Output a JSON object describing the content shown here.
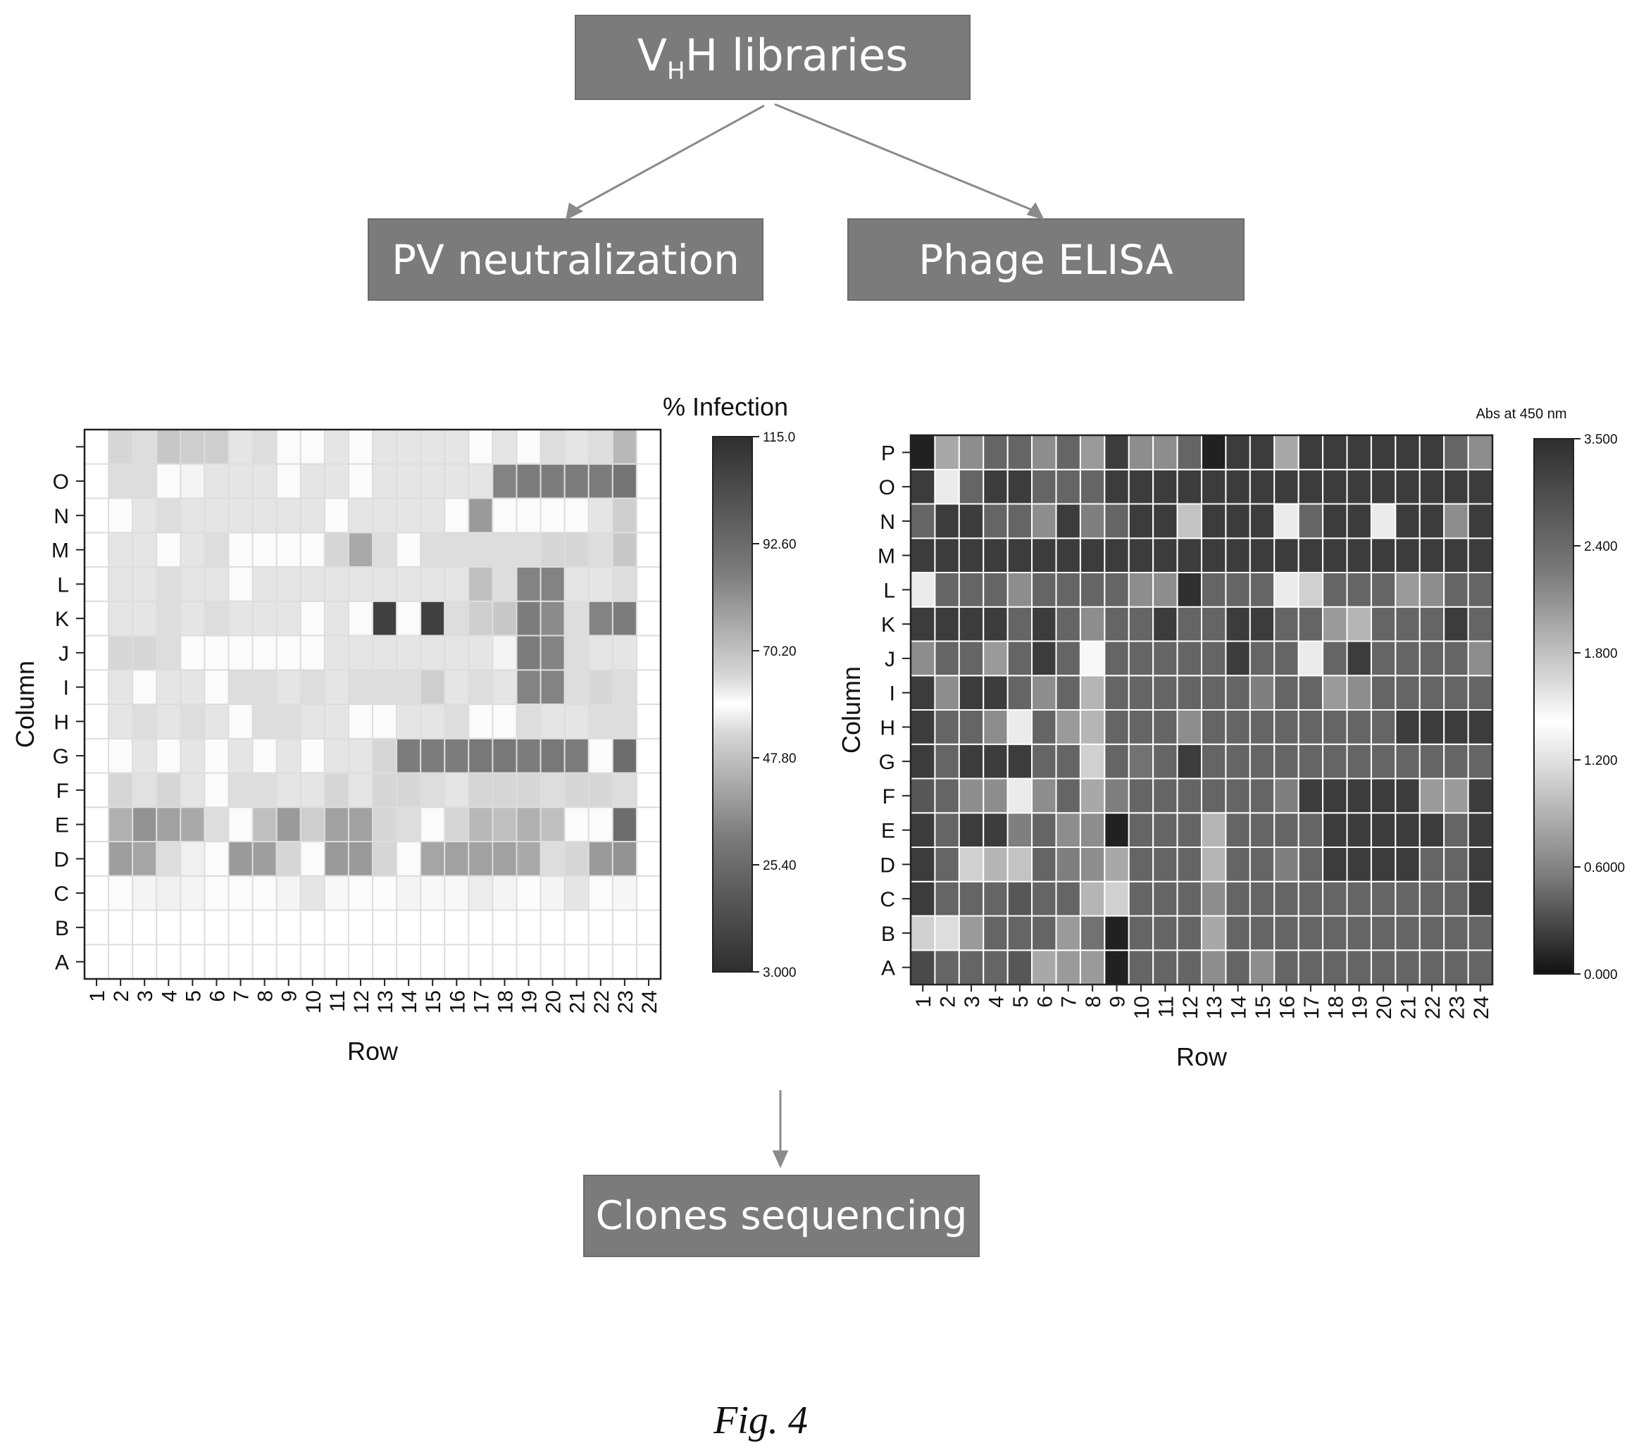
{
  "flow": {
    "libraries_main": "V",
    "libraries_sub": "H",
    "libraries_rest": "H libraries",
    "pv": "PV neutralization",
    "elisa": "Phage ELISA",
    "clones": "Clones sequencing"
  },
  "caption": "Fig. 4",
  "chart_data": [
    {
      "type": "heatmap",
      "title": "",
      "xlabel": "Row",
      "ylabel": "Column",
      "x_ticks": [
        "1",
        "2",
        "3",
        "4",
        "5",
        "6",
        "7",
        "8",
        "9",
        "10",
        "11",
        "12",
        "13",
        "14",
        "15",
        "16",
        "17",
        "18",
        "19",
        "20",
        "21",
        "22",
        "23",
        "24"
      ],
      "y_ticks": [
        "A",
        "B",
        "C",
        "D",
        "E",
        "F",
        "G",
        "H",
        "I",
        "J",
        "K",
        "L",
        "M",
        "N",
        "O",
        ""
      ],
      "colorbar": {
        "label": "% Infection",
        "ticks": [
          "115.0",
          "92.60",
          "70.20",
          "47.80",
          "25.40",
          "3.000"
        ],
        "min": 3.0,
        "max": 115.0
      },
      "values": [
        [
          null,
          null,
          null,
          null,
          null,
          null,
          null,
          null,
          null,
          null,
          null,
          null,
          null,
          null,
          null,
          null,
          null,
          null,
          null,
          null,
          null,
          null,
          null,
          null
        ],
        [
          null,
          null,
          null,
          null,
          null,
          null,
          null,
          null,
          null,
          null,
          null,
          null,
          null,
          null,
          null,
          null,
          null,
          null,
          null,
          null,
          null,
          null,
          null,
          null
        ],
        [
          null,
          58,
          62,
          55,
          62,
          60,
          58,
          60,
          56,
          52,
          57,
          60,
          58,
          56,
          57,
          57,
          54,
          56,
          58,
          56,
          52,
          60,
          61,
          null
        ],
        [
          null,
          85,
          83,
          68,
          63,
          58,
          86,
          85,
          70,
          60,
          86,
          86,
          70,
          60,
          83,
          84,
          84,
          84,
          82,
          68,
          70,
          86,
          88,
          null
        ],
        [
          null,
          80,
          88,
          84,
          82,
          68,
          60,
          76,
          86,
          72,
          84,
          84,
          70,
          68,
          60,
          70,
          78,
          76,
          80,
          76,
          60,
          60,
          98,
          null
        ],
        [
          null,
          70,
          67,
          70,
          66,
          60,
          68,
          68,
          66,
          66,
          70,
          66,
          70,
          70,
          68,
          66,
          70,
          70,
          70,
          68,
          70,
          70,
          68,
          null
        ],
        [
          null,
          60,
          66,
          60,
          66,
          60,
          66,
          60,
          66,
          60,
          66,
          66,
          70,
          94,
          94,
          94,
          95,
          95,
          94,
          95,
          94,
          58,
          98,
          null
        ],
        [
          null,
          66,
          68,
          66,
          68,
          66,
          60,
          68,
          68,
          66,
          66,
          58,
          60,
          66,
          66,
          68,
          60,
          60,
          68,
          66,
          66,
          68,
          68,
          null
        ],
        [
          null,
          66,
          58,
          66,
          66,
          60,
          68,
          68,
          66,
          68,
          66,
          68,
          68,
          68,
          72,
          66,
          68,
          66,
          92,
          92,
          68,
          70,
          68,
          null
        ],
        [
          null,
          70,
          70,
          68,
          60,
          60,
          60,
          60,
          60,
          60,
          66,
          66,
          66,
          66,
          66,
          66,
          66,
          62,
          94,
          92,
          68,
          66,
          66,
          null
        ],
        [
          null,
          66,
          66,
          68,
          66,
          68,
          66,
          66,
          66,
          58,
          66,
          58,
          110,
          60,
          110,
          68,
          72,
          74,
          94,
          90,
          68,
          92,
          94,
          null
        ],
        [
          null,
          66,
          66,
          68,
          66,
          66,
          60,
          66,
          66,
          66,
          66,
          66,
          66,
          66,
          66,
          66,
          76,
          68,
          92,
          92,
          66,
          66,
          68,
          null
        ],
        [
          null,
          66,
          66,
          58,
          66,
          68,
          58,
          60,
          60,
          58,
          70,
          82,
          68,
          60,
          68,
          68,
          68,
          68,
          68,
          70,
          70,
          68,
          74,
          null
        ],
        [
          null,
          60,
          66,
          68,
          66,
          66,
          66,
          66,
          66,
          66,
          58,
          66,
          66,
          66,
          66,
          60,
          86,
          58,
          60,
          60,
          60,
          66,
          72,
          null
        ],
        [
          null,
          68,
          68,
          58,
          62,
          66,
          66,
          66,
          60,
          66,
          66,
          60,
          66,
          66,
          66,
          66,
          66,
          92,
          94,
          94,
          94,
          94,
          96,
          null
        ],
        [
          null,
          70,
          68,
          74,
          72,
          72,
          66,
          68,
          60,
          58,
          66,
          58,
          66,
          66,
          66,
          66,
          58,
          66,
          60,
          68,
          66,
          68,
          78,
          null
        ]
      ]
    },
    {
      "type": "heatmap",
      "title": "",
      "xlabel": "Row",
      "ylabel": "Column",
      "x_ticks": [
        "1",
        "2",
        "3",
        "4",
        "5",
        "6",
        "7",
        "8",
        "9",
        "10",
        "11",
        "12",
        "13",
        "14",
        "15",
        "16",
        "17",
        "18",
        "19",
        "20",
        "21",
        "22",
        "23",
        "24"
      ],
      "y_ticks": [
        "A",
        "B",
        "C",
        "D",
        "E",
        "F",
        "G",
        "H",
        "I",
        "J",
        "K",
        "L",
        "M",
        "N",
        "O",
        "P"
      ],
      "colorbar": {
        "label": "Abs at 450 nm",
        "ticks": [
          "3.500",
          "2.400",
          "1.800",
          "1.200",
          "0.6000",
          "0.000"
        ],
        "min": 0.0,
        "max": 3.5
      },
      "values": [
        [
          0.4,
          0.6,
          0.6,
          0.6,
          0.5,
          1.1,
          1.0,
          1.0,
          0.1,
          0.6,
          0.6,
          0.6,
          0.9,
          0.6,
          0.9,
          0.6,
          0.6,
          0.6,
          0.6,
          0.6,
          0.6,
          0.6,
          0.6,
          0.6
        ],
        [
          1.4,
          1.5,
          1.0,
          0.6,
          0.6,
          0.6,
          1.0,
          0.7,
          0.1,
          0.6,
          0.6,
          0.6,
          1.1,
          0.6,
          0.6,
          0.6,
          0.6,
          0.6,
          0.6,
          0.6,
          0.6,
          0.6,
          0.6,
          0.6
        ],
        [
          0.3,
          0.6,
          0.6,
          0.6,
          0.5,
          0.6,
          0.6,
          1.2,
          1.4,
          0.6,
          0.6,
          0.6,
          0.9,
          0.6,
          0.6,
          0.6,
          0.6,
          0.6,
          0.6,
          0.6,
          0.6,
          0.6,
          0.6,
          0.3
        ],
        [
          0.3,
          0.6,
          1.4,
          1.2,
          1.3,
          0.6,
          0.8,
          0.9,
          1.1,
          0.6,
          0.6,
          0.6,
          1.2,
          0.6,
          0.6,
          0.8,
          0.6,
          0.3,
          0.3,
          0.3,
          0.3,
          0.6,
          0.6,
          0.3
        ],
        [
          0.3,
          0.6,
          0.3,
          0.3,
          0.8,
          0.6,
          0.9,
          0.9,
          0.1,
          0.6,
          0.6,
          0.6,
          1.2,
          0.6,
          0.6,
          0.6,
          0.6,
          0.3,
          0.3,
          0.3,
          0.3,
          0.3,
          0.6,
          0.3
        ],
        [
          0.5,
          0.6,
          0.9,
          0.9,
          1.6,
          0.9,
          0.6,
          1.1,
          0.8,
          0.6,
          0.6,
          0.6,
          0.6,
          0.6,
          0.6,
          0.8,
          0.3,
          0.3,
          0.3,
          0.3,
          0.3,
          1.0,
          1.0,
          0.3
        ],
        [
          0.3,
          0.6,
          0.3,
          0.3,
          0.3,
          0.6,
          0.6,
          1.4,
          0.6,
          0.7,
          0.6,
          0.3,
          0.6,
          0.6,
          0.6,
          0.6,
          0.6,
          0.6,
          0.6,
          0.6,
          0.6,
          0.6,
          0.6,
          0.6
        ],
        [
          0.3,
          0.6,
          0.6,
          0.9,
          1.6,
          0.6,
          1.0,
          1.2,
          0.6,
          0.6,
          0.6,
          0.9,
          0.6,
          0.6,
          0.6,
          0.6,
          0.6,
          0.6,
          0.6,
          0.6,
          0.3,
          0.3,
          0.3,
          0.3
        ],
        [
          0.3,
          0.9,
          0.3,
          0.3,
          0.6,
          0.9,
          0.6,
          1.2,
          0.6,
          0.6,
          0.6,
          0.6,
          0.6,
          0.6,
          0.8,
          0.6,
          0.6,
          1.0,
          0.9,
          0.6,
          0.6,
          0.6,
          0.6,
          0.6
        ],
        [
          0.9,
          0.6,
          0.6,
          1.0,
          0.6,
          0.3,
          0.6,
          1.7,
          0.6,
          0.6,
          0.6,
          0.6,
          0.6,
          0.3,
          0.6,
          0.6,
          1.6,
          0.6,
          0.3,
          0.6,
          0.6,
          0.6,
          0.6,
          0.9
        ],
        [
          0.3,
          0.3,
          0.3,
          0.3,
          0.6,
          0.3,
          0.6,
          0.9,
          0.6,
          0.6,
          0.3,
          0.6,
          0.6,
          0.3,
          0.3,
          0.6,
          0.6,
          1.0,
          1.2,
          0.6,
          0.6,
          0.6,
          0.3,
          0.6
        ],
        [
          1.6,
          0.6,
          0.6,
          0.6,
          0.9,
          0.6,
          0.6,
          0.6,
          0.6,
          0.9,
          0.9,
          0.2,
          0.6,
          0.6,
          0.6,
          1.6,
          1.4,
          0.6,
          0.6,
          0.6,
          1.0,
          0.9,
          0.6,
          0.6
        ],
        [
          0.3,
          0.3,
          0.3,
          0.3,
          0.3,
          0.3,
          0.3,
          0.3,
          0.3,
          0.3,
          0.3,
          0.3,
          0.3,
          0.3,
          0.3,
          0.3,
          0.3,
          0.3,
          0.3,
          0.3,
          0.3,
          0.3,
          0.3,
          0.3
        ],
        [
          0.6,
          0.3,
          0.3,
          0.6,
          0.6,
          0.9,
          0.3,
          0.8,
          0.6,
          0.3,
          0.3,
          1.3,
          0.3,
          0.3,
          0.3,
          1.6,
          0.6,
          0.3,
          0.3,
          1.6,
          0.3,
          0.3,
          0.9,
          0.3
        ],
        [
          0.3,
          1.6,
          0.6,
          0.3,
          0.3,
          0.6,
          0.6,
          0.6,
          0.3,
          0.3,
          0.3,
          0.3,
          0.3,
          0.3,
          0.3,
          0.3,
          0.3,
          0.3,
          0.3,
          0.3,
          0.3,
          0.3,
          0.3,
          0.3
        ],
        [
          0.1,
          1.1,
          0.9,
          0.6,
          0.6,
          0.9,
          0.6,
          1.0,
          0.3,
          0.9,
          0.9,
          0.6,
          0.1,
          0.3,
          0.3,
          1.1,
          0.3,
          0.3,
          0.3,
          0.3,
          0.3,
          0.3,
          0.6,
          0.9
        ]
      ]
    }
  ]
}
